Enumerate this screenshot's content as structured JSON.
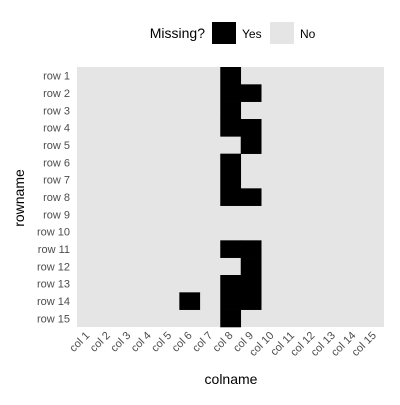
{
  "chart_data": {
    "type": "heatmap",
    "title": "",
    "xlabel": "colname",
    "ylabel": "rowname",
    "x": [
      "col 1",
      "col 2",
      "col 3",
      "col 4",
      "col 5",
      "col 6",
      "col 7",
      "col 8",
      "col 9",
      "col 10",
      "col 11",
      "col 12",
      "col 13",
      "col 14",
      "col 15"
    ],
    "y": [
      "row 1",
      "row 2",
      "row 3",
      "row 4",
      "row 5",
      "row 6",
      "row 7",
      "row 8",
      "row 9",
      "row 10",
      "row 11",
      "row 12",
      "row 13",
      "row 14",
      "row 15"
    ],
    "missing": [
      [
        "row 1",
        "col 8"
      ],
      [
        "row 2",
        "col 8"
      ],
      [
        "row 2",
        "col 9"
      ],
      [
        "row 3",
        "col 8"
      ],
      [
        "row 4",
        "col 8"
      ],
      [
        "row 4",
        "col 9"
      ],
      [
        "row 5",
        "col 9"
      ],
      [
        "row 6",
        "col 8"
      ],
      [
        "row 7",
        "col 8"
      ],
      [
        "row 8",
        "col 8"
      ],
      [
        "row 8",
        "col 9"
      ],
      [
        "row 11",
        "col 8"
      ],
      [
        "row 11",
        "col 9"
      ],
      [
        "row 12",
        "col 9"
      ],
      [
        "row 13",
        "col 8"
      ],
      [
        "row 13",
        "col 9"
      ],
      [
        "row 14",
        "col 6"
      ],
      [
        "row 14",
        "col 8"
      ],
      [
        "row 14",
        "col 9"
      ],
      [
        "row 15",
        "col 8"
      ]
    ],
    "legend": {
      "title": "Missing?",
      "position": "top",
      "items": [
        {
          "label": "Yes",
          "color": "#000000"
        },
        {
          "label": "No",
          "color": "#e5e5e5"
        }
      ]
    },
    "colors": {
      "missing": "#000000",
      "present": "#e5e5e5"
    }
  }
}
